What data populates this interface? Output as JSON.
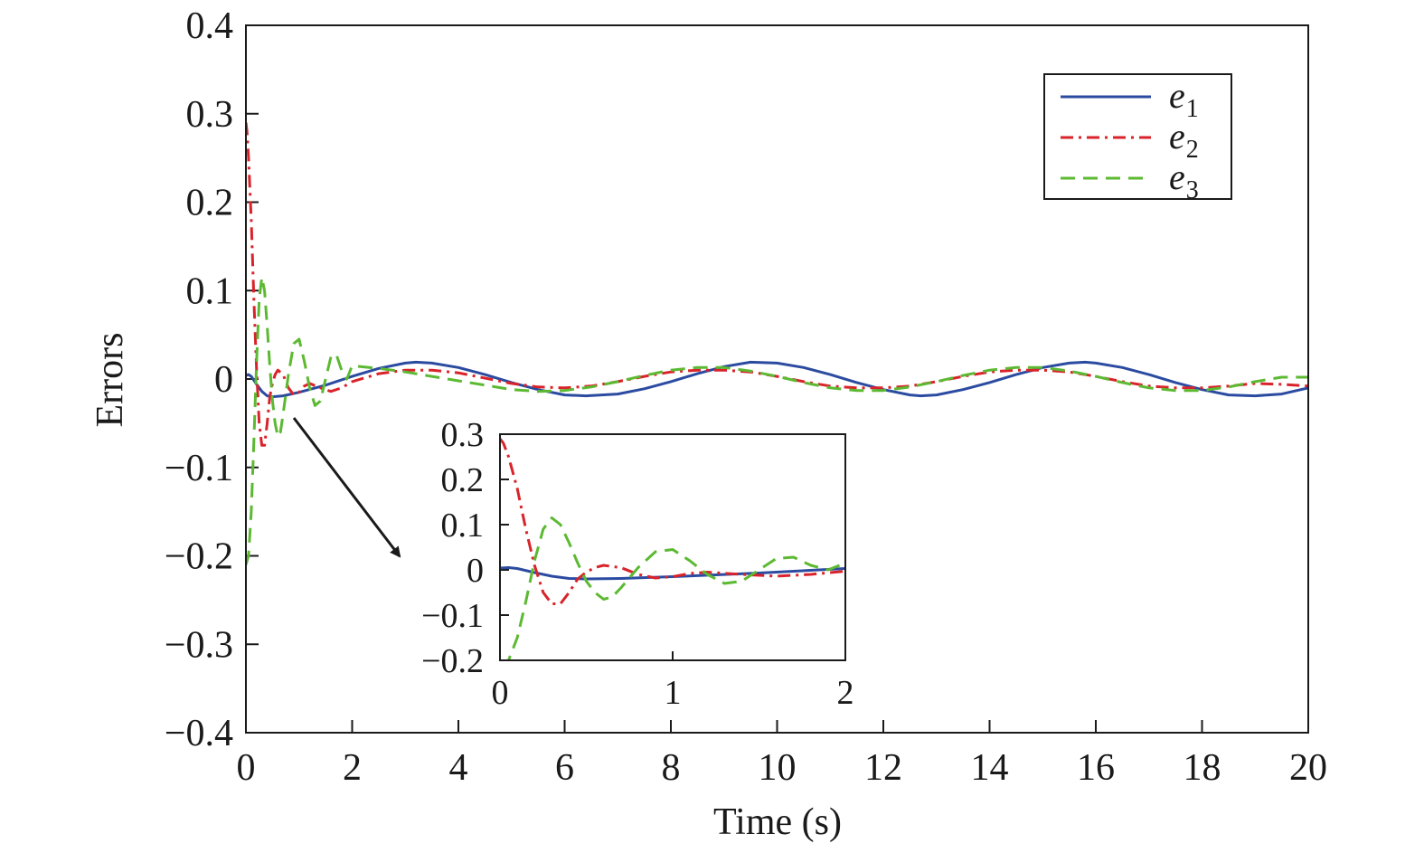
{
  "chart_data": {
    "type": "line",
    "xlabel": "Time (s)",
    "ylabel": "Errors",
    "xlim": [
      0,
      20
    ],
    "ylim": [
      -0.4,
      0.4
    ],
    "x_ticks": [
      0,
      2,
      4,
      6,
      8,
      10,
      12,
      14,
      16,
      18,
      20
    ],
    "x_tick_labels": [
      "0",
      "2",
      "4",
      "6",
      "8",
      "10",
      "12",
      "14",
      "16",
      "18",
      "20"
    ],
    "y_ticks": [
      0.4,
      0.3,
      0.2,
      0.1,
      0,
      -0.1,
      -0.2,
      -0.3,
      -0.4
    ],
    "y_tick_labels": [
      "0.4",
      "0.3",
      "0.2",
      "0.1",
      "0",
      "−0.1",
      "−0.2",
      "−0.3",
      "−0.4"
    ],
    "legend_position": "top-right",
    "series": [
      {
        "name": "e1",
        "symbol": "e",
        "subscript": "1",
        "color": "#2b4ba1",
        "dash": "solid",
        "x": [
          0,
          0.05,
          0.1,
          0.2,
          0.3,
          0.4,
          0.5,
          0.7,
          1.0,
          1.5,
          2.0,
          2.5,
          3.0,
          3.2,
          3.5,
          4.0,
          4.5,
          5.0,
          5.5,
          6.0,
          6.4,
          7.0,
          7.5,
          8.0,
          8.5,
          9.0,
          9.5,
          10.0,
          10.5,
          11.0,
          11.5,
          12.0,
          12.5,
          12.7,
          13.0,
          13.5,
          14.0,
          14.5,
          15.0,
          15.5,
          15.8,
          16.0,
          16.5,
          17.0,
          17.5,
          18.0,
          18.5,
          19.0,
          19.5,
          20.0
        ],
        "y": [
          0.004,
          0.005,
          0.003,
          -0.006,
          -0.014,
          -0.019,
          -0.02,
          -0.019,
          -0.015,
          -0.007,
          0.003,
          0.012,
          0.018,
          0.019,
          0.018,
          0.013,
          0.005,
          -0.004,
          -0.012,
          -0.018,
          -0.019,
          -0.017,
          -0.011,
          -0.003,
          0.006,
          0.014,
          0.019,
          0.018,
          0.013,
          0.005,
          -0.004,
          -0.012,
          -0.018,
          -0.019,
          -0.018,
          -0.012,
          -0.004,
          0.005,
          0.013,
          0.018,
          0.019,
          0.018,
          0.013,
          0.005,
          -0.004,
          -0.012,
          -0.018,
          -0.019,
          -0.017,
          -0.01
        ]
      },
      {
        "name": "e2",
        "symbol": "e",
        "subscript": "2",
        "color": "#d9232a",
        "dash": "dashdot",
        "x": [
          0,
          0.02,
          0.05,
          0.1,
          0.15,
          0.2,
          0.25,
          0.3,
          0.35,
          0.4,
          0.45,
          0.5,
          0.55,
          0.6,
          0.7,
          0.8,
          0.9,
          1.0,
          1.1,
          1.2,
          1.4,
          1.6,
          1.8,
          2.0,
          2.5,
          3.0,
          3.5,
          4.0,
          4.5,
          5.0,
          5.5,
          6.0,
          6.5,
          7.0,
          7.5,
          8.0,
          8.5,
          9.0,
          9.5,
          10.0,
          10.5,
          11.0,
          11.5,
          12.0,
          12.5,
          13.0,
          13.5,
          14.0,
          14.5,
          15.0,
          15.5,
          16.0,
          16.5,
          17.0,
          17.5,
          18.0,
          18.5,
          19.0,
          19.5,
          20.0
        ],
        "y": [
          0.29,
          0.28,
          0.25,
          0.18,
          0.09,
          0.01,
          -0.05,
          -0.075,
          -0.075,
          -0.05,
          -0.02,
          -0.005,
          0.005,
          0.01,
          0.005,
          -0.01,
          -0.018,
          -0.015,
          -0.008,
          -0.005,
          -0.01,
          -0.014,
          -0.01,
          -0.003,
          0.006,
          0.01,
          0.01,
          0.007,
          0.001,
          -0.005,
          -0.009,
          -0.01,
          -0.008,
          -0.003,
          0.003,
          0.008,
          0.01,
          0.01,
          0.008,
          0.003,
          -0.003,
          -0.008,
          -0.01,
          -0.01,
          -0.008,
          -0.003,
          0.003,
          0.008,
          0.01,
          0.01,
          0.008,
          0.003,
          -0.003,
          -0.008,
          -0.01,
          -0.01,
          -0.008,
          -0.005,
          -0.006,
          -0.008
        ]
      },
      {
        "name": "e3",
        "symbol": "e",
        "subscript": "3",
        "color": "#5cb932",
        "dash": "dashed",
        "x": [
          0,
          0.05,
          0.1,
          0.15,
          0.2,
          0.25,
          0.3,
          0.35,
          0.4,
          0.45,
          0.5,
          0.55,
          0.6,
          0.65,
          0.7,
          0.8,
          0.9,
          1.0,
          1.1,
          1.2,
          1.3,
          1.4,
          1.5,
          1.6,
          1.7,
          1.8,
          1.9,
          2.0,
          2.5,
          3.0,
          3.5,
          4.0,
          4.5,
          5.0,
          5.5,
          6.0,
          6.5,
          7.0,
          7.5,
          8.0,
          8.5,
          9.0,
          9.5,
          10.0,
          10.5,
          11.0,
          11.5,
          12.0,
          12.5,
          13.0,
          13.5,
          14.0,
          14.5,
          15.0,
          15.5,
          16.0,
          16.5,
          17.0,
          17.5,
          18.0,
          18.5,
          19.0,
          19.5,
          20.0
        ],
        "y": [
          -0.21,
          -0.2,
          -0.15,
          -0.07,
          0.02,
          0.09,
          0.115,
          0.1,
          0.06,
          0.015,
          -0.025,
          -0.05,
          -0.065,
          -0.06,
          -0.04,
          0.005,
          0.04,
          0.045,
          0.02,
          -0.01,
          -0.03,
          -0.025,
          0.0,
          0.025,
          0.028,
          0.01,
          0.0,
          0.015,
          0.012,
          0.008,
          0.003,
          -0.002,
          -0.007,
          -0.012,
          -0.014,
          -0.013,
          -0.009,
          -0.003,
          0.004,
          0.01,
          0.013,
          0.013,
          0.009,
          0.003,
          -0.004,
          -0.01,
          -0.013,
          -0.013,
          -0.009,
          -0.003,
          0.004,
          0.01,
          0.013,
          0.013,
          0.009,
          0.003,
          -0.004,
          -0.01,
          -0.013,
          -0.013,
          -0.009,
          -0.003,
          0.002,
          0.002
        ]
      }
    ],
    "inset": {
      "xlim": [
        0,
        2
      ],
      "ylim": [
        -0.2,
        0.3
      ],
      "x_ticks": [
        0,
        1,
        2
      ],
      "x_tick_labels": [
        "0",
        "1",
        "2"
      ],
      "y_ticks": [
        0.3,
        0.2,
        0.1,
        0,
        -0.1,
        -0.2
      ],
      "y_tick_labels": [
        "0.3",
        "0.2",
        "0.1",
        "0",
        "−0.1",
        "−0.2"
      ],
      "annotation": "arrow from early transient region of main plot to inset"
    }
  }
}
